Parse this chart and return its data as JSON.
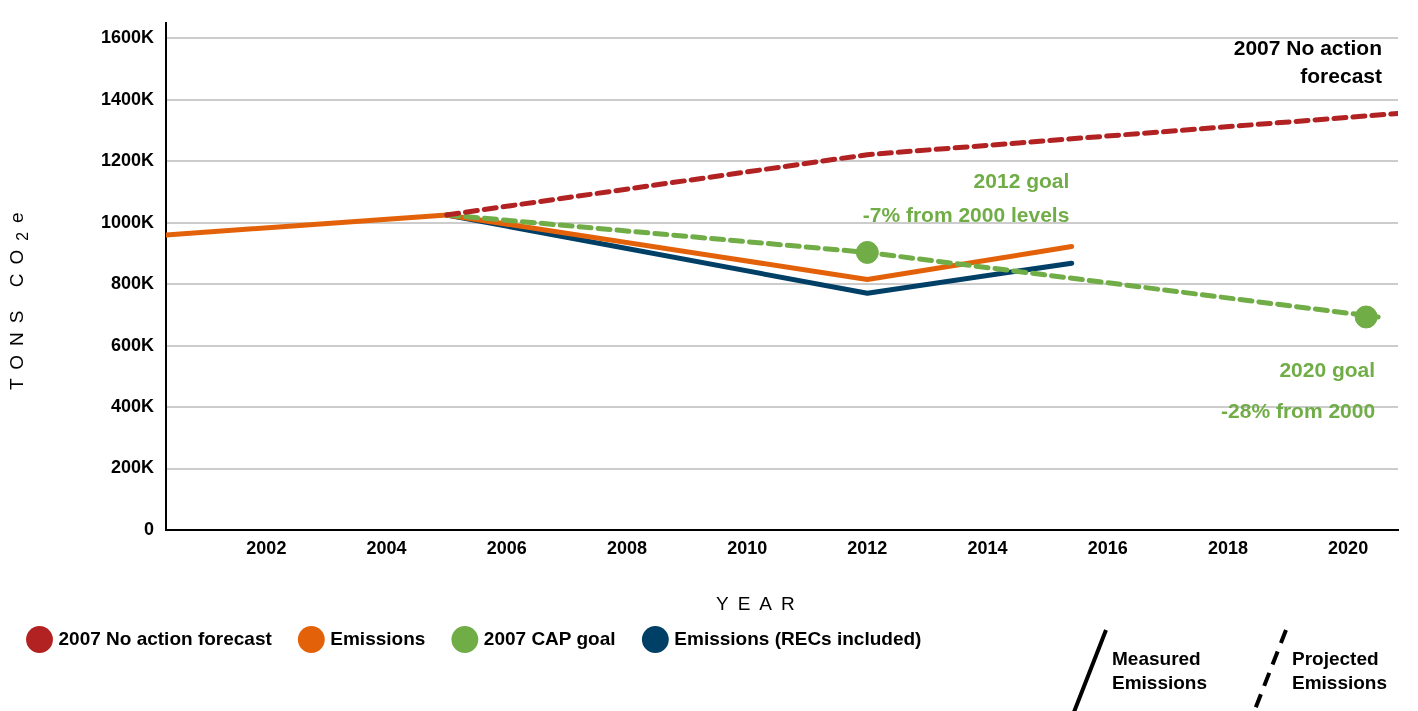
{
  "chart_data": {
    "type": "line",
    "xlabel": "YEAR",
    "ylabel": "TONS CO$_{2}$e",
    "xlim": [
      2000.33,
      2020.83
    ],
    "xticks": [
      2002,
      2004,
      2006,
      2008,
      2010,
      2012,
      2014,
      2016,
      2018,
      2020
    ],
    "ylim": [
      0,
      1650
    ],
    "yticks": [
      0,
      {
        "value": 200,
        "label": "200K"
      },
      {
        "value": 400,
        "label": "400K"
      },
      {
        "value": 600,
        "label": "600K"
      },
      {
        "value": 800,
        "label": "800K"
      },
      {
        "value": 1000,
        "label": "1000K"
      },
      {
        "value": 1200,
        "label": "1200K"
      },
      {
        "value": 1400,
        "label": "1400K"
      },
      {
        "value": 1600,
        "label": "1600K"
      }
    ],
    "grid": "y",
    "legend": "bottom",
    "marker": "none",
    "series": [
      {
        "name": "2007 No action forecast",
        "color": "#b22222",
        "line_style": "dashed",
        "x": [
          2005,
          2012,
          2020.83
        ],
        "values": [
          1025,
          1221,
          1355
        ]
      },
      {
        "name": "Emissions",
        "color": "#e36209",
        "line_style": "solid",
        "x": [
          2000.33,
          2005,
          2012,
          2015.4
        ],
        "values": [
          960,
          1025,
          815,
          922
        ]
      },
      {
        "name": "2007 CAP goal",
        "color": "#70ad47",
        "line_style": "dashed",
        "x": [
          2005,
          2012,
          2020.5
        ],
        "values": [
          1025,
          903,
          693
        ]
      },
      {
        "name": "Emissions (RECs included)",
        "color": "#003f66",
        "line_style": "solid",
        "x": [
          2005,
          2012,
          2015.4
        ],
        "values": [
          1025,
          770,
          868
        ]
      },
      {
        "type": "scatter",
        "color": "#70ad47",
        "marker": "circle",
        "x": [
          2012,
          2020.3
        ],
        "values": [
          903,
          693
        ]
      }
    ],
    "annotations": [
      "2007 No action\nforecast",
      {
        "text": "2012 goal\n-7% from 2000 levels",
        "x": 2012,
        "y": 903
      },
      {
        "text": "2020 goal\n-28% from 2000",
        "x": 2020.3,
        "y": 693
      },
      "Measured\nEmissions",
      "Projected\nEmissions"
    ]
  }
}
